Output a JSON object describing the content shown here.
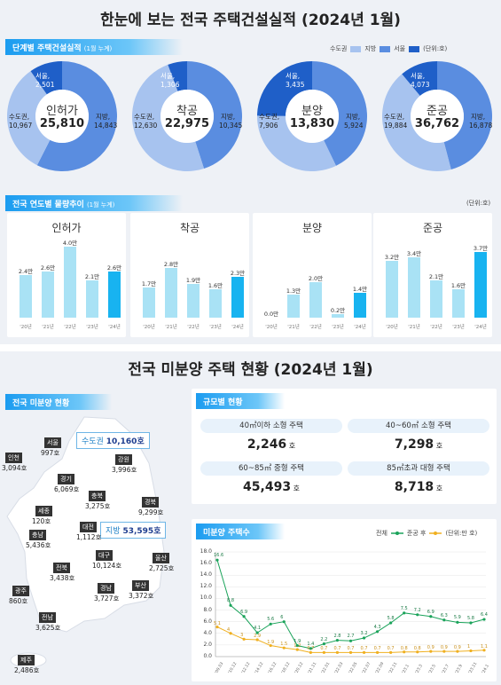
{
  "top_title": "한눈에 보는 전국 주택건설실적 (2024년 1월)",
  "section1": {
    "title": "단계별 주택건설실적",
    "subtitle": "(1월 누계)"
  },
  "legend": {
    "metro": "수도권",
    "regional": "지방",
    "seoul": "서울",
    "unit": "(단위:호)"
  },
  "colors": {
    "metro": "#a7c3ef",
    "regional": "#5a8de0",
    "seoul": "#1f5fc8",
    "bar_light": "#a9e2f5",
    "bar_dark": "#18b3f0"
  },
  "donuts": [
    {
      "title": "인허가",
      "total": "25,810",
      "seoul_label": "서울,",
      "seoul": "2,501",
      "metro_label": "수도권,",
      "metro": "10,967",
      "regional_label": "지방,",
      "regional": "14,843"
    },
    {
      "title": "착공",
      "total": "22,975",
      "seoul_label": "서울,",
      "seoul": "1,306",
      "metro_label": "수도권,",
      "metro": "12,630",
      "regional_label": "지방,",
      "regional": "10,345"
    },
    {
      "title": "분양",
      "total": "13,830",
      "seoul_label": "서울,",
      "seoul": "3,435",
      "metro_label": "수도권,",
      "metro": "7,906",
      "regional_label": "지방,",
      "regional": "5,924"
    },
    {
      "title": "준공",
      "total": "36,762",
      "seoul_label": "서울,",
      "seoul": "4,073",
      "metro_label": "수도권,",
      "metro": "19,884",
      "regional_label": "지방,",
      "regional": "16,878"
    }
  ],
  "section2": {
    "title": "전국 연도별 물량추이",
    "subtitle": "(1월 누계)",
    "unit": "(단위:호)"
  },
  "chart_data": [
    {
      "type": "bar",
      "title": "인허가",
      "categories": [
        "'20년",
        "'21년",
        "'22년",
        "'23년",
        "'24년"
      ],
      "values": [
        2.4,
        2.6,
        4.0,
        2.1,
        2.6
      ],
      "labels": [
        "2.4만",
        "2.6만",
        "4.0만",
        "2.1만",
        "2.6만"
      ]
    },
    {
      "type": "bar",
      "title": "착공",
      "categories": [
        "'20년",
        "'21년",
        "'22년",
        "'23년",
        "'24년"
      ],
      "values": [
        1.7,
        2.8,
        1.9,
        1.6,
        2.3
      ],
      "labels": [
        "1.7만",
        "2.8만",
        "1.9만",
        "1.6만",
        "2.3만"
      ]
    },
    {
      "type": "bar",
      "title": "분양",
      "categories": [
        "'20년",
        "'21년",
        "'22년",
        "'23년",
        "'24년"
      ],
      "values": [
        0.0,
        1.3,
        2.0,
        0.2,
        1.4
      ],
      "labels": [
        "0.0만",
        "1.3만",
        "2.0만",
        "0.2만",
        "1.4만"
      ]
    },
    {
      "type": "bar",
      "title": "준공",
      "categories": [
        "'20년",
        "'21년",
        "'22년",
        "'23년",
        "'24년"
      ],
      "values": [
        3.2,
        3.4,
        2.1,
        1.6,
        3.7
      ],
      "labels": [
        "3.2만",
        "3.4만",
        "2.1만",
        "1.6만",
        "3.7만"
      ]
    },
    {
      "type": "line",
      "title": "미분양 주택수",
      "x": [
        "'09.03",
        "'10.12",
        "'12.12",
        "'14.12",
        "'16.12",
        "'18.12",
        "'20.12",
        "'21.11",
        "'22.01",
        "'22.03",
        "'22.05",
        "'22.07",
        "'22.09",
        "'22.11",
        "'23.1",
        "'23.3",
        "'23.5",
        "'23.7",
        "'23.9",
        "'23.11",
        "'24.1"
      ],
      "series": [
        {
          "name": "전체",
          "values": [
            16.6,
            8.8,
            6.9,
            4.1,
            5.6,
            6.0,
            1.9,
            1.4,
            2.2,
            2.8,
            2.7,
            3.2,
            4.3,
            5.8,
            7.5,
            7.2,
            6.9,
            6.3,
            5.9,
            5.8,
            6.4
          ]
        },
        {
          "name": "준공 후",
          "values": [
            5.1,
            4.0,
            3.0,
            2.9,
            1.9,
            1.5,
            1.2,
            0.7,
            0.7,
            0.7,
            0.7,
            0.7,
            0.7,
            0.7,
            0.8,
            0.8,
            0.9,
            0.9,
            0.9,
            1.0,
            1.1
          ]
        }
      ],
      "ylim": [
        0,
        18
      ],
      "yticks": [
        0,
        2,
        4,
        6,
        8,
        10,
        12,
        14,
        16,
        18
      ],
      "unit": "(단위:만 호)"
    }
  ],
  "bottom_title": "전국 미분양 주택 현황 (2024년 1월)",
  "map_section": {
    "title": "전국 미분양 현황",
    "metro_box": {
      "label": "수도권",
      "value": "10,160호"
    },
    "regional_box": {
      "label": "지방",
      "value": "53,595호"
    },
    "regions": [
      {
        "name": "서울",
        "value": "997호"
      },
      {
        "name": "인천",
        "value": "3,094호"
      },
      {
        "name": "강원",
        "value": "3,996호"
      },
      {
        "name": "경기",
        "value": "6,069호"
      },
      {
        "name": "충북",
        "value": "3,275호"
      },
      {
        "name": "세종",
        "value": "120호"
      },
      {
        "name": "경북",
        "value": "9,299호"
      },
      {
        "name": "대전",
        "value": "1,112호"
      },
      {
        "name": "충남",
        "value": "5,436호"
      },
      {
        "name": "대구",
        "value": "10,124호"
      },
      {
        "name": "울산",
        "value": "2,725호"
      },
      {
        "name": "전북",
        "value": "3,438호"
      },
      {
        "name": "경남",
        "value": "3,727호"
      },
      {
        "name": "부산",
        "value": "3,372호"
      },
      {
        "name": "광주",
        "value": "860호"
      },
      {
        "name": "전남",
        "value": "3,625호"
      },
      {
        "name": "제주",
        "value": "2,486호"
      }
    ]
  },
  "size_section": {
    "title": "규모별 현황",
    "cells": [
      {
        "label": "40㎡이하 소형 주택",
        "value": "2,246",
        "unit": "호"
      },
      {
        "label": "40~60㎡ 소형 주택",
        "value": "7,298",
        "unit": "호"
      },
      {
        "label": "60~85㎡ 중형 주택",
        "value": "45,493",
        "unit": "호"
      },
      {
        "label": "85㎡초과 대형 주택",
        "value": "8,718",
        "unit": "호"
      }
    ]
  },
  "unsold_section": {
    "title": "미분양 주택수",
    "legend_total": "전체",
    "legend_after": "준공 후",
    "unit": "(단위:만 호)"
  }
}
